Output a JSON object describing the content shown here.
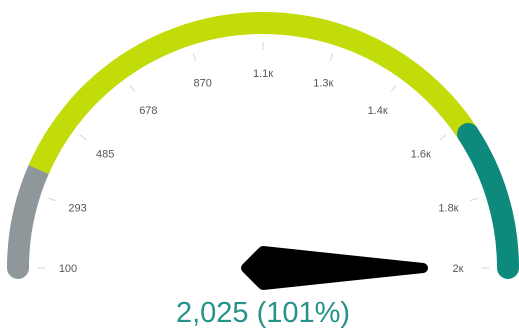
{
  "chart_data": {
    "type": "gauge",
    "min": 100,
    "max": 2000,
    "value": 2025,
    "value_label": "2,025 (101%)",
    "tick_labels": [
      "100",
      "293",
      "485",
      "678",
      "870",
      "1.1к",
      "1.3к",
      "1.4к",
      "1.6к",
      "1.8к",
      "2к"
    ],
    "bands": [
      {
        "from": 100,
        "to": 350,
        "color": "#8f979b"
      },
      {
        "from": 350,
        "to": 1650,
        "color": "#c2dc0a"
      },
      {
        "from": 1650,
        "to": 2000,
        "color": "#0e8a7c"
      }
    ],
    "needle_color": "#000000",
    "value_color": "#26928a",
    "tick_color": "#d6d6d6"
  }
}
